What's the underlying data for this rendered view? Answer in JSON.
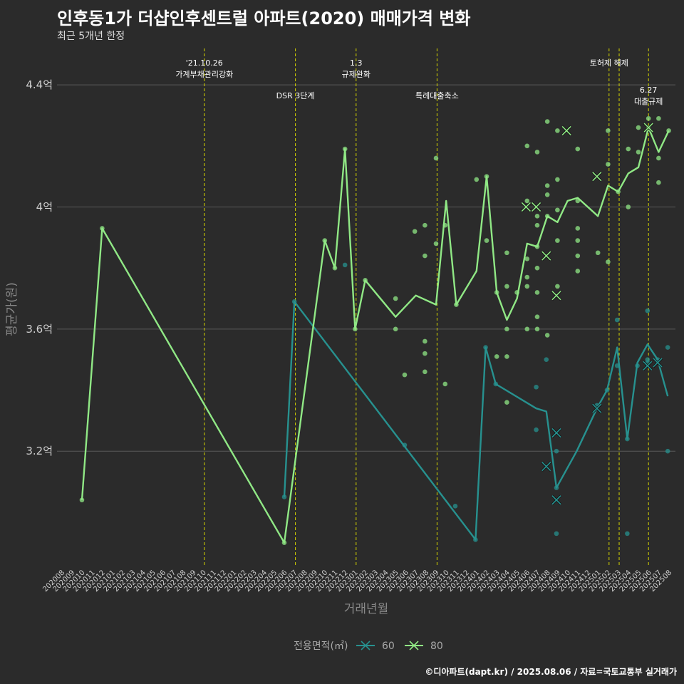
{
  "title": "인후동1가 더샵인후센트럴 아파트(2020) 매매가격 변화",
  "subtitle": "최근 5개년 한정",
  "caption": "©디아파트(dapt.kr) / 2025.08.06 / 자료=국토교통부 실거래가",
  "colors": {
    "background": "#2b2b2b",
    "grid": "#5a5a5a",
    "vline": "#d4d400",
    "series60": "#27918f",
    "series80": "#90e885"
  },
  "chart_data": {
    "type": "line",
    "xlabel": "거래년월",
    "ylabel": "평균가(원)",
    "ylim": [
      2.82,
      4.51
    ],
    "yticks": [
      3.2,
      3.6,
      4.0,
      4.4
    ],
    "ytick_labels": [
      "3.2억",
      "3.6억",
      "4억",
      "4.4억"
    ],
    "grid": true,
    "legend": {
      "position": "bottom",
      "title": "전용면적(㎡)",
      "entries": [
        "60",
        "80"
      ]
    },
    "x_categories": [
      "202008",
      "202009",
      "202010",
      "202011",
      "202012",
      "202101",
      "202102",
      "202103",
      "202104",
      "202105",
      "202106",
      "202107",
      "202108",
      "202109",
      "202110",
      "202111",
      "202112",
      "202201",
      "202202",
      "202203",
      "202204",
      "202205",
      "202206",
      "202207",
      "202208",
      "202209",
      "202210",
      "202211",
      "202212",
      "202301",
      "202302",
      "202303",
      "202304",
      "202305",
      "202306",
      "202307",
      "202308",
      "202309",
      "202310",
      "202311",
      "202312",
      "202401",
      "202402",
      "202403",
      "202404",
      "202405",
      "202406",
      "202407",
      "202408",
      "202409",
      "202410",
      "202411",
      "202412",
      "202501",
      "202502",
      "202503",
      "202504",
      "202505",
      "202506",
      "202507",
      "202508"
    ],
    "annotations": [
      {
        "x": 14.0,
        "label": "'21.10.26\n가계부채관리강화",
        "row": 0
      },
      {
        "x": 23.0,
        "label": "DSR 3단계",
        "row": 1
      },
      {
        "x": 29.0,
        "label": "1.3\n규제완화",
        "row": 0
      },
      {
        "x": 37.0,
        "label": "특례대출축소",
        "row": 1
      },
      {
        "x": 54.0,
        "label": "토허제 해제",
        "row": 0
      },
      {
        "x": 55.0,
        "label": "",
        "row": 0
      },
      {
        "x": 57.9,
        "label": "6.27\n대출규제",
        "row": 2
      }
    ],
    "series": [
      {
        "name": "60",
        "line": [
          [
            21.9,
            3.05
          ],
          [
            22.9,
            3.69
          ],
          [
            40.8,
            2.91
          ],
          [
            41.8,
            3.54
          ],
          [
            42.8,
            3.42
          ],
          [
            46.8,
            3.34
          ],
          [
            47.8,
            3.33
          ],
          [
            48.8,
            3.08
          ],
          [
            50.8,
            3.2
          ],
          [
            52.8,
            3.34
          ],
          [
            53.8,
            3.4
          ],
          [
            54.8,
            3.54
          ],
          [
            55.8,
            3.24
          ],
          [
            56.8,
            3.49
          ],
          [
            57.8,
            3.55
          ],
          [
            58.8,
            3.5
          ],
          [
            59.8,
            3.38
          ]
        ],
        "points": [
          [
            21.9,
            3.05
          ],
          [
            22.9,
            3.69
          ],
          [
            27.9,
            3.81
          ],
          [
            33.8,
            3.22
          ],
          [
            38.8,
            3.02
          ],
          [
            40.8,
            2.91
          ],
          [
            41.8,
            3.54
          ],
          [
            42.8,
            3.42
          ],
          [
            46.8,
            3.27
          ],
          [
            46.8,
            3.41
          ],
          [
            47.8,
            3.5
          ],
          [
            48.8,
            3.08
          ],
          [
            48.8,
            3.2
          ],
          [
            48.8,
            2.93
          ],
          [
            52.8,
            3.35
          ],
          [
            53.8,
            3.4
          ],
          [
            54.8,
            3.48
          ],
          [
            54.8,
            3.63
          ],
          [
            55.8,
            3.24
          ],
          [
            55.8,
            2.93
          ],
          [
            56.8,
            3.48
          ],
          [
            57.8,
            3.66
          ],
          [
            57.8,
            3.5
          ],
          [
            57.8,
            3.49
          ],
          [
            58.8,
            3.5
          ],
          [
            59.8,
            3.54
          ],
          [
            59.8,
            3.2
          ]
        ],
        "crosses": [
          [
            47.8,
            3.15
          ],
          [
            48.8,
            3.26
          ],
          [
            48.8,
            3.04
          ],
          [
            52.8,
            3.34
          ],
          [
            57.8,
            3.48
          ],
          [
            58.8,
            3.49
          ]
        ]
      },
      {
        "name": "80",
        "line": [
          [
            1.9,
            3.04
          ],
          [
            3.9,
            3.93
          ],
          [
            21.9,
            2.9
          ],
          [
            25.9,
            3.89
          ],
          [
            26.9,
            3.8
          ],
          [
            27.9,
            4.19
          ],
          [
            28.9,
            3.6
          ],
          [
            29.9,
            3.76
          ],
          [
            32.9,
            3.64
          ],
          [
            34.9,
            3.71
          ],
          [
            36.9,
            3.68
          ],
          [
            37.9,
            4.02
          ],
          [
            38.9,
            3.68
          ],
          [
            40.9,
            3.79
          ],
          [
            41.9,
            4.1
          ],
          [
            42.9,
            3.72
          ],
          [
            43.9,
            3.63
          ],
          [
            44.9,
            3.7
          ],
          [
            45.9,
            3.88
          ],
          [
            46.9,
            3.87
          ],
          [
            47.9,
            3.97
          ],
          [
            48.9,
            3.95
          ],
          [
            49.9,
            4.02
          ],
          [
            50.9,
            4.03
          ],
          [
            52.9,
            3.97
          ],
          [
            53.9,
            4.07
          ],
          [
            54.9,
            4.05
          ],
          [
            55.9,
            4.11
          ],
          [
            56.9,
            4.13
          ],
          [
            57.9,
            4.26
          ],
          [
            58.9,
            4.18
          ],
          [
            59.9,
            4.25
          ]
        ],
        "points": [
          [
            1.9,
            3.04
          ],
          [
            3.9,
            3.93
          ],
          [
            21.9,
            2.9
          ],
          [
            25.9,
            3.89
          ],
          [
            26.9,
            3.8
          ],
          [
            27.9,
            4.19
          ],
          [
            28.9,
            3.6
          ],
          [
            29.9,
            3.76
          ],
          [
            32.9,
            3.7
          ],
          [
            32.9,
            3.6
          ],
          [
            33.8,
            3.45
          ],
          [
            34.8,
            3.92
          ],
          [
            35.8,
            3.46
          ],
          [
            35.8,
            3.52
          ],
          [
            35.8,
            3.56
          ],
          [
            35.8,
            3.84
          ],
          [
            35.8,
            3.94
          ],
          [
            36.9,
            4.16
          ],
          [
            36.9,
            3.88
          ],
          [
            37.8,
            3.42
          ],
          [
            37.8,
            3.94
          ],
          [
            38.9,
            3.68
          ],
          [
            40.9,
            4.09
          ],
          [
            41.9,
            4.1
          ],
          [
            41.9,
            3.89
          ],
          [
            42.9,
            3.51
          ],
          [
            42.9,
            3.72
          ],
          [
            43.9,
            3.36
          ],
          [
            43.9,
            3.51
          ],
          [
            43.9,
            3.6
          ],
          [
            43.9,
            3.74
          ],
          [
            43.9,
            3.85
          ],
          [
            44.9,
            3.72
          ],
          [
            45.9,
            3.6
          ],
          [
            45.9,
            3.74
          ],
          [
            45.9,
            3.77
          ],
          [
            45.9,
            3.83
          ],
          [
            45.9,
            4.02
          ],
          [
            45.9,
            4.2
          ],
          [
            46.9,
            3.6
          ],
          [
            46.9,
            3.64
          ],
          [
            46.9,
            3.72
          ],
          [
            46.9,
            3.8
          ],
          [
            46.9,
            3.87
          ],
          [
            46.9,
            3.94
          ],
          [
            46.9,
            3.97
          ],
          [
            46.9,
            4.18
          ],
          [
            47.9,
            3.58
          ],
          [
            47.9,
            3.97
          ],
          [
            47.9,
            4.04
          ],
          [
            47.9,
            4.07
          ],
          [
            47.9,
            4.28
          ],
          [
            48.9,
            3.74
          ],
          [
            48.9,
            3.89
          ],
          [
            48.9,
            3.99
          ],
          [
            48.9,
            4.09
          ],
          [
            48.9,
            4.25
          ],
          [
            50.9,
            3.79
          ],
          [
            50.9,
            3.84
          ],
          [
            50.9,
            3.89
          ],
          [
            50.9,
            3.93
          ],
          [
            50.9,
            4.02
          ],
          [
            50.9,
            4.19
          ],
          [
            52.9,
            3.85
          ],
          [
            53.9,
            3.82
          ],
          [
            53.9,
            4.14
          ],
          [
            53.9,
            4.25
          ],
          [
            54.9,
            4.05
          ],
          [
            55.9,
            4.0
          ],
          [
            55.9,
            4.19
          ],
          [
            56.9,
            4.18
          ],
          [
            56.9,
            4.26
          ],
          [
            57.9,
            4.29
          ],
          [
            57.9,
            4.26
          ],
          [
            58.9,
            4.29
          ],
          [
            58.9,
            4.08
          ],
          [
            58.9,
            4.16
          ],
          [
            59.9,
            4.25
          ]
        ],
        "crosses": [
          [
            45.8,
            4.0
          ],
          [
            46.8,
            4.0
          ],
          [
            47.8,
            3.84
          ],
          [
            48.8,
            3.71
          ],
          [
            49.8,
            4.25
          ],
          [
            52.8,
            4.1
          ],
          [
            57.9,
            4.26
          ]
        ]
      }
    ]
  }
}
